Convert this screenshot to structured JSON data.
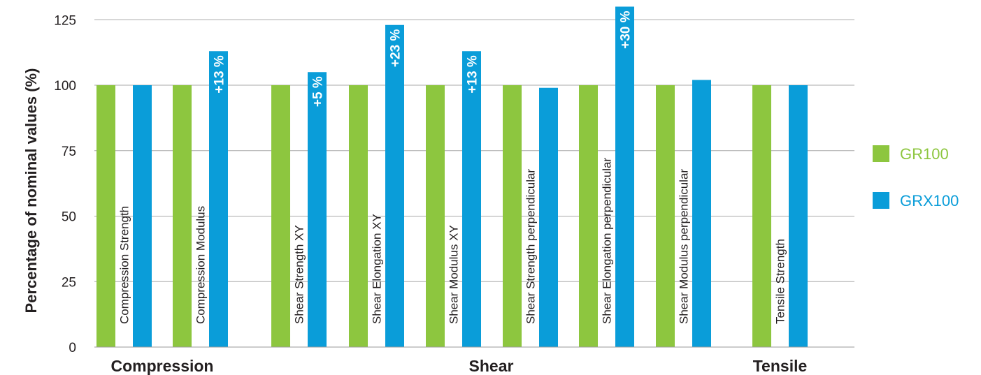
{
  "chart_data": {
    "type": "bar",
    "ylabel": "Percentage of nominal values (%)",
    "ylim": [
      0,
      125
    ],
    "yticks": [
      0,
      25,
      50,
      75,
      100,
      125
    ],
    "grid": true,
    "legend_position": "right",
    "categories": [
      "Compression Strength",
      "Compression Modulus",
      "Shear Strength XY",
      "Shear Elongation XY",
      "Shear Modulus XY",
      "Shear Strength perpendicular",
      "Shear Elongation perpendicular",
      "Shear Modulus perpendicular",
      "Tensile Strength"
    ],
    "groups": [
      {
        "label": "Compression",
        "categories": [
          0,
          1
        ]
      },
      {
        "label": "Shear",
        "categories": [
          2,
          3,
          4,
          5,
          6,
          7
        ]
      },
      {
        "label": "Tensile",
        "categories": [
          8
        ]
      }
    ],
    "series": [
      {
        "name": "GR100",
        "color": "#8dc63f",
        "values": [
          100,
          100,
          100,
          100,
          100,
          100,
          100,
          100,
          100
        ]
      },
      {
        "name": "GRX100",
        "color": "#0a9dd9",
        "values": [
          100,
          113,
          105,
          123,
          113,
          99,
          130,
          102,
          100
        ]
      }
    ],
    "data_labels": [
      "",
      "+13 %",
      "+5 %",
      "+23 %",
      "+13 %",
      "",
      "+30 %",
      "",
      ""
    ]
  }
}
